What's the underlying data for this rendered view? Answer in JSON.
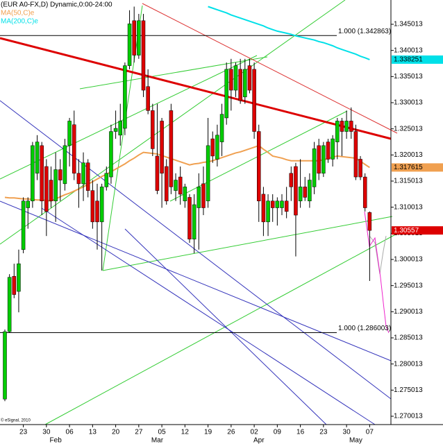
{
  "chart_data": {
    "type": "candlestick",
    "title": "(EUR A0-FX,D) Dynamic,0:00-24:00",
    "credit": "© eSignal, 2010",
    "categories": [
      null,
      null,
      null,
      null,
      "23",
      null,
      null,
      null,
      null,
      "30",
      null,
      null,
      null,
      null,
      "06",
      null,
      null,
      null,
      null,
      "13",
      null,
      null,
      null,
      null,
      "20",
      null,
      null,
      null,
      null,
      "27",
      null,
      null,
      null,
      null,
      "05",
      null,
      null,
      null,
      null,
      "12",
      null,
      null,
      null,
      null,
      "19",
      null,
      null,
      null,
      null,
      "26",
      null,
      null,
      null,
      null,
      "02",
      null,
      null,
      null,
      null,
      "09",
      null,
      null,
      null,
      null,
      "16",
      null,
      null,
      null,
      null,
      "23",
      null,
      null,
      null,
      null,
      "30",
      null,
      null,
      null,
      null,
      "07"
    ],
    "month_labels": [
      null,
      null,
      null,
      null,
      null,
      null,
      null,
      null,
      null,
      null,
      null,
      "Feb",
      null,
      null,
      null,
      null,
      null,
      null,
      null,
      null,
      null,
      null,
      null,
      null,
      null,
      null,
      null,
      null,
      null,
      null,
      null,
      null,
      null,
      "Mar",
      null,
      null,
      null,
      null,
      null,
      null,
      null,
      null,
      null,
      null,
      null,
      null,
      null,
      null,
      null,
      null,
      null,
      null,
      null,
      null,
      null,
      "Apr",
      null,
      null,
      null,
      null,
      null,
      null,
      null,
      null,
      null,
      null,
      null,
      null,
      null,
      null,
      null,
      null,
      null,
      null,
      null,
      null,
      "May",
      null,
      null,
      null
    ],
    "up_color": "#00cc00",
    "down_color": "#dd0000",
    "ohlc": [
      [
        1.2733,
        1.2866,
        1.2729,
        1.2862
      ],
      [
        1.2862,
        1.2972,
        1.286,
        1.2966
      ],
      [
        1.2968,
        1.2992,
        1.2926,
        1.2933
      ],
      [
        1.2939,
        1.3019,
        1.2899,
        1.2992
      ],
      [
        1.3019,
        1.3119,
        1.3012,
        1.3112
      ],
      [
        1.3099,
        1.3119,
        1.3059,
        1.3112
      ],
      [
        1.3112,
        1.3225,
        1.3099,
        1.3218
      ],
      [
        1.3165,
        1.3238,
        1.3152,
        1.3225
      ],
      [
        1.3218,
        1.3225,
        1.3085,
        1.3112
      ],
      [
        1.3178,
        1.3192,
        1.3045,
        1.3092
      ],
      [
        1.3152,
        1.3178,
        1.3099,
        1.3112
      ],
      [
        1.3112,
        1.3205,
        1.3072,
        1.3172
      ],
      [
        1.3172,
        1.3192,
        1.3112,
        1.3152
      ],
      [
        1.3145,
        1.3231,
        1.3132,
        1.3218
      ],
      [
        1.3218,
        1.3271,
        1.3178,
        1.3265
      ],
      [
        1.3258,
        1.3285,
        1.3152,
        1.3165
      ],
      [
        1.3165,
        1.3192,
        1.3099,
        1.3145
      ],
      [
        1.3145,
        1.3205,
        1.3112,
        1.3185
      ],
      [
        1.3185,
        1.3192,
        1.3119,
        1.3132
      ],
      [
        1.3132,
        1.3152,
        1.3059,
        1.3072
      ],
      [
        1.3112,
        1.3145,
        1.3019,
        1.3072
      ],
      [
        1.3072,
        1.3145,
        1.2979,
        1.3139
      ],
      [
        1.3139,
        1.3178,
        1.3132,
        1.3165
      ],
      [
        1.3158,
        1.3258,
        1.3145,
        1.3245
      ],
      [
        1.3245,
        1.3285,
        1.3231,
        1.3251
      ],
      [
        1.3238,
        1.3298,
        1.3218,
        1.3265
      ],
      [
        1.3251,
        1.3377,
        1.3238,
        1.3371
      ],
      [
        1.3371,
        1.3477,
        1.3364,
        1.3451
      ],
      [
        1.3457,
        1.3484,
        1.3377,
        1.3391
      ],
      [
        1.3391,
        1.347,
        1.3384,
        1.3457
      ],
      [
        1.3457,
        1.347,
        1.3311,
        1.3324
      ],
      [
        1.3331,
        1.3364,
        1.3278,
        1.3285
      ],
      [
        1.3285,
        1.3298,
        1.3198,
        1.3212
      ],
      [
        1.3198,
        1.3298,
        1.3125,
        1.3132
      ],
      [
        1.3265,
        1.3271,
        1.3099,
        1.3165
      ],
      [
        1.3178,
        1.3192,
        1.3105,
        1.3112
      ],
      [
        1.3285,
        1.3298,
        1.3125,
        1.3139
      ],
      [
        1.3132,
        1.3165,
        1.3112,
        1.3152
      ],
      [
        1.3158,
        1.3178,
        1.3105,
        1.3125
      ],
      [
        1.3112,
        1.3145,
        1.3099,
        1.3139
      ],
      [
        1.3119,
        1.3125,
        1.3032,
        1.3039
      ],
      [
        1.3039,
        1.3125,
        1.3012,
        1.3105
      ],
      [
        1.3099,
        1.3165,
        1.3019,
        1.3139
      ],
      [
        1.3145,
        1.3178,
        1.3085,
        1.3099
      ],
      [
        1.3112,
        1.3271,
        1.3099,
        1.3218
      ],
      [
        1.3231,
        1.3245,
        1.3185,
        1.3198
      ],
      [
        1.3192,
        1.3258,
        1.3178,
        1.3238
      ],
      [
        1.3225,
        1.3298,
        1.3198,
        1.3278
      ],
      [
        1.3271,
        1.3377,
        1.3258,
        1.3364
      ],
      [
        1.3364,
        1.3384,
        1.3285,
        1.3324
      ],
      [
        1.3324,
        1.3377,
        1.3311,
        1.3371
      ],
      [
        1.3364,
        1.3384,
        1.3298,
        1.3304
      ],
      [
        1.3311,
        1.3384,
        1.3298,
        1.3364
      ],
      [
        1.3371,
        1.3384,
        1.3318,
        1.3324
      ],
      [
        1.3364,
        1.3377,
        1.3231,
        1.3245
      ],
      [
        1.3245,
        1.3258,
        1.3072,
        1.3112
      ],
      [
        1.3125,
        1.3139,
        1.3045,
        1.3072
      ],
      [
        1.3072,
        1.3125,
        1.3045,
        1.3112
      ],
      [
        1.3112,
        1.3125,
        1.3072,
        1.3099
      ],
      [
        1.3099,
        1.3119,
        1.3065,
        1.3112
      ],
      [
        1.3099,
        1.3125,
        1.3085,
        1.3112
      ],
      [
        1.3112,
        1.3139,
        1.3079,
        1.3092
      ],
      [
        1.3165,
        1.3178,
        1.3112,
        1.3139
      ],
      [
        1.3178,
        1.3185,
        1.3006,
        1.3085
      ],
      [
        1.3112,
        1.3192,
        1.3099,
        1.3139
      ],
      [
        1.3139,
        1.3158,
        1.3112,
        1.3119
      ],
      [
        1.3112,
        1.3165,
        1.3099,
        1.3152
      ],
      [
        1.3139,
        1.3225,
        1.3125,
        1.3212
      ],
      [
        1.3218,
        1.3231,
        1.3152,
        1.3165
      ],
      [
        1.3165,
        1.3225,
        1.3158,
        1.3218
      ],
      [
        1.3225,
        1.3231,
        1.3185,
        1.3192
      ],
      [
        1.3192,
        1.3238,
        1.3178,
        1.3231
      ],
      [
        1.3225,
        1.3271,
        1.3192,
        1.3265
      ],
      [
        1.3265,
        1.3271,
        1.3198,
        1.3245
      ],
      [
        1.3245,
        1.3285,
        1.3231,
        1.3265
      ],
      [
        1.3265,
        1.3291,
        1.3231,
        1.3245
      ],
      [
        1.3245,
        1.3258,
        1.3152,
        1.3158
      ],
      [
        1.3192,
        1.3198,
        1.3152,
        1.3158
      ],
      [
        1.3158,
        1.3165,
        1.3092,
        1.3099
      ],
      [
        1.309,
        1.3092,
        1.2959,
        1.30557
      ]
    ],
    "series": [
      {
        "name": "MA(50,C)e",
        "color": "#f0a050",
        "values": [
          1.3119,
          1.3118,
          1.3118,
          1.3117,
          1.3116,
          1.3116,
          1.3115,
          1.3114,
          1.3114,
          1.3113,
          1.3112,
          1.3116,
          1.312,
          1.3124,
          1.3127,
          1.3131,
          1.3135,
          1.3139,
          1.3144,
          1.3149,
          1.3154,
          1.3159,
          1.3163,
          1.3168,
          1.3173,
          1.3178,
          1.3183,
          1.3189,
          1.3194,
          1.32,
          1.3205,
          1.3204,
          1.3203,
          1.3202,
          1.3199,
          1.3196,
          1.3193,
          1.319,
          1.3187,
          1.3184,
          1.3181,
          1.3183,
          1.3184,
          1.3186,
          1.3187,
          1.3189,
          1.3192,
          1.3195,
          1.3198,
          1.3201,
          1.3204,
          1.3206,
          1.3209,
          1.3212,
          1.3215,
          1.3218,
          1.3211,
          1.3205,
          1.3198,
          1.3196,
          1.3194,
          1.3191,
          1.3189,
          1.3189,
          1.3189,
          1.3189,
          1.3189,
          1.3189,
          1.3189,
          1.3191,
          1.3193,
          1.3196,
          1.3198,
          1.3197,
          1.3196,
          1.3195,
          1.3194,
          1.3188,
          1.3182,
          1.317615
        ]
      },
      {
        "name": "MA(200,C)e",
        "color": "#00e0e8",
        "values": [
          null,
          null,
          null,
          null,
          null,
          null,
          null,
          null,
          null,
          null,
          null,
          null,
          null,
          null,
          null,
          null,
          null,
          null,
          null,
          null,
          null,
          null,
          null,
          null,
          null,
          null,
          null,
          null,
          null,
          null,
          null,
          null,
          null,
          null,
          null,
          null,
          null,
          null,
          null,
          null,
          null,
          null,
          null,
          null,
          1.3484,
          1.3481,
          1.3478,
          1.3475,
          1.3472,
          1.3468,
          1.3465,
          1.3462,
          1.3459,
          1.3456,
          1.3453,
          1.345,
          1.3447,
          1.3443,
          1.344,
          1.3437,
          1.3435,
          1.3433,
          1.3431,
          1.3428,
          1.3426,
          1.3424,
          1.3422,
          1.342,
          1.3417,
          1.3415,
          1.3412,
          1.3409,
          1.3405,
          1.3402,
          1.3399,
          1.3396,
          1.3393,
          1.3389,
          1.3386,
          1.338251
        ]
      }
    ],
    "levels": [
      {
        "label": "1.000 (1.342863)",
        "value": 1.342863
      },
      {
        "label": "1.000 (1.286003)",
        "value": 1.286003
      }
    ],
    "ylim": [
      1.26842,
      1.34966
    ],
    "yticks": [
      1.345013,
      1.340013,
      1.335013,
      1.330013,
      1.325013,
      1.320013,
      1.315013,
      1.310013,
      1.305013,
      1.300013,
      1.295013,
      1.290013,
      1.285013,
      1.280013,
      1.275013,
      1.270013
    ]
  }
}
